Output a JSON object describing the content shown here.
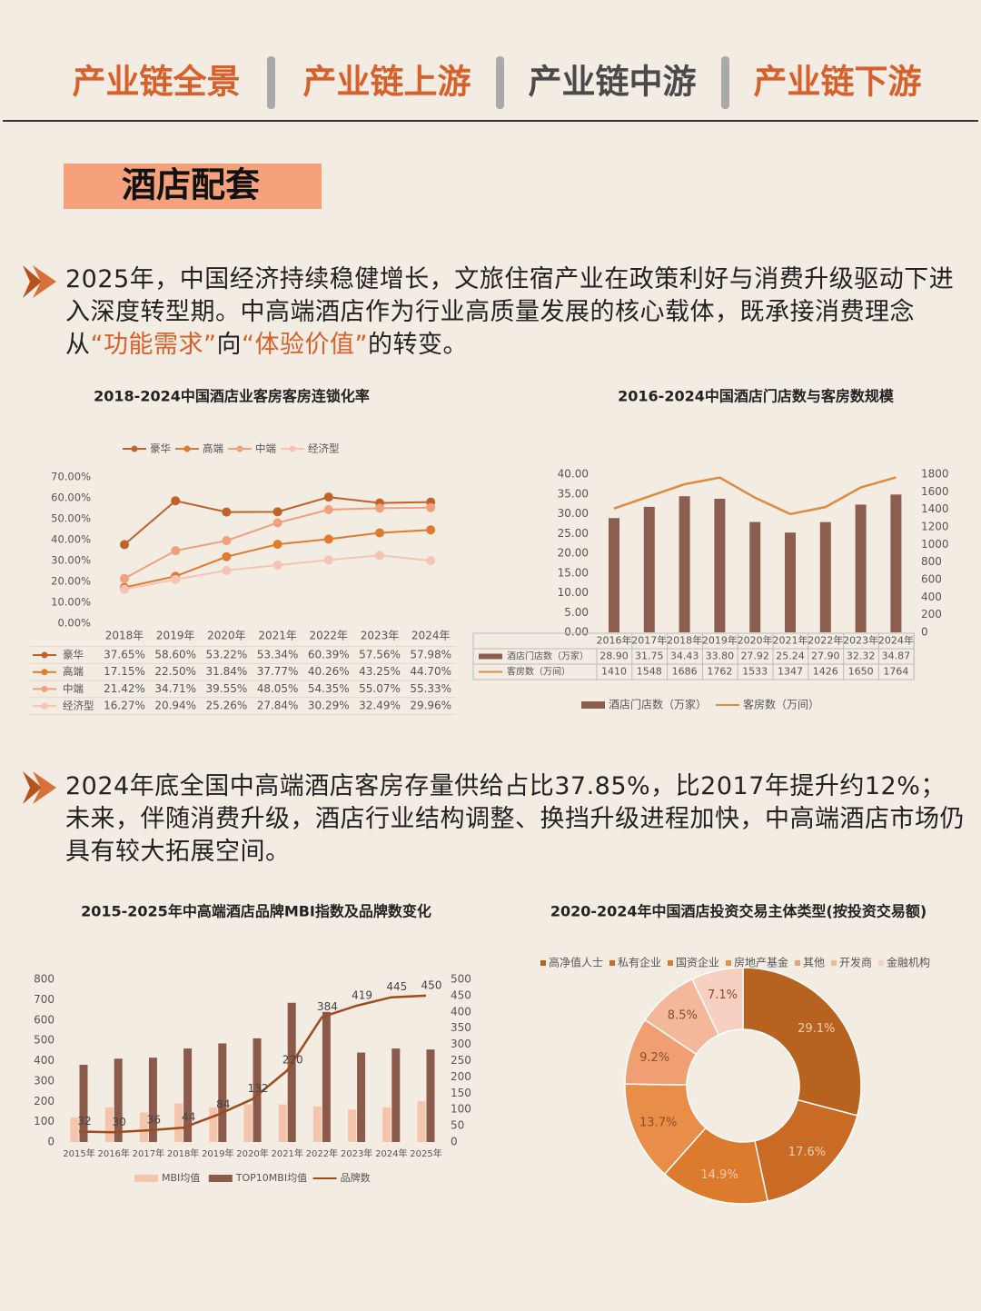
{
  "nav": [
    "产业链全景",
    "产业链上游",
    "产业链中游",
    "产业链下游"
  ],
  "section_title": "酒店配套",
  "paragraphs": [
    [
      "2025年，中国经济持续稳健增长，文旅住宿产业在政策利好与消费升级驱动下进入深度转型期。中高端酒店作为行业高质量发展的核心载体，既承接消费理念从",
      "“功能需求”",
      "向",
      "“体验价值”",
      "的转变。"
    ],
    [
      "2024年底全国中高端酒店客房存量供给占比37.85%，比2017年提升约12%；未来，伴随消费升级，酒店行业结构调整、换挡升级进程加快，中高端酒店市场仍具有较大拓展空间。"
    ]
  ],
  "chart_data": [
    {
      "type": "line",
      "title": "2018-2024中国酒店业客房客房连锁化率",
      "categories": [
        "2018年",
        "2019年",
        "2020年",
        "2021年",
        "2022年",
        "2023年",
        "2024年"
      ],
      "series": [
        {
          "name": "豪华",
          "color": "#c0622a",
          "values": [
            37.65,
            58.6,
            53.22,
            53.34,
            60.39,
            57.56,
            57.98
          ],
          "value_labels": [
            "37.65%",
            "58.60%",
            "53.22%",
            "53.34%",
            "60.39%",
            "57.56%",
            "57.98%"
          ]
        },
        {
          "name": "高端",
          "color": "#e07b2e",
          "values": [
            17.15,
            22.5,
            31.84,
            37.77,
            40.26,
            43.25,
            44.7
          ],
          "value_labels": [
            "17.15%",
            "22.50%",
            "31.84%",
            "37.77%",
            "40.26%",
            "43.25%",
            "44.70%"
          ]
        },
        {
          "name": "中端",
          "color": "#f0a07a",
          "values": [
            21.42,
            34.71,
            39.55,
            48.05,
            54.35,
            55.07,
            55.33
          ],
          "value_labels": [
            "21.42%",
            "34.71%",
            "39.55%",
            "48.05%",
            "54.35%",
            "55.07%",
            "55.33%"
          ]
        },
        {
          "name": "经济型",
          "color": "#f5c4b2",
          "values": [
            16.27,
            20.94,
            25.26,
            27.84,
            30.29,
            32.49,
            29.96
          ],
          "value_labels": [
            "16.27%",
            "20.94%",
            "25.26%",
            "27.84%",
            "30.29%",
            "32.49%",
            "29.96%"
          ]
        }
      ],
      "ylim": [
        0,
        70
      ],
      "yticks": [
        {
          "value": 0,
          "label": "0.00%"
        },
        {
          "value": 10,
          "label": "10.00%"
        },
        {
          "value": 20,
          "label": "20.00%"
        },
        {
          "value": 30,
          "label": "30.00%"
        },
        {
          "value": 40,
          "label": "40.00%"
        },
        {
          "value": 50,
          "label": "50.00%"
        },
        {
          "value": 60,
          "label": "60.00%"
        },
        {
          "value": 70,
          "label": "70.00%"
        }
      ],
      "legend": "top",
      "table": true,
      "grid": false
    },
    {
      "type": "bar",
      "title": "2016-2024中国酒店门店数与客房数规模",
      "categories": [
        "2016年",
        "2017年",
        "2018年",
        "2019年",
        "2020年",
        "2021年",
        "2022年",
        "2023年",
        "2024年"
      ],
      "series": [
        {
          "name": "酒店门店数（万家）",
          "color": "#8c5e50",
          "values": [
            28.9,
            31.75,
            34.43,
            33.8,
            27.92,
            25.24,
            27.9,
            32.32,
            34.87
          ],
          "value_labels": [
            "28.90",
            "31.75",
            "34.43",
            "33.80",
            "27.92",
            "25.24",
            "27.90",
            "32.32",
            "34.87"
          ]
        },
        {
          "name": "客房数（万间）",
          "type": "line",
          "axis": "y2",
          "color": "#e08a3c",
          "values": [
            1410,
            1548,
            1686,
            1762,
            1533,
            1347,
            1426,
            1650,
            1764
          ]
        }
      ],
      "ylim": [
        0,
        40
      ],
      "yticks": [
        {
          "value": 0,
          "label": "0.00"
        },
        {
          "value": 5,
          "label": "5.00"
        },
        {
          "value": 10,
          "label": "10.00"
        },
        {
          "value": 15,
          "label": "15.00"
        },
        {
          "value": 20,
          "label": "20.00"
        },
        {
          "value": 25,
          "label": "25.00"
        },
        {
          "value": 30,
          "label": "30.00"
        },
        {
          "value": 35,
          "label": "35.00"
        },
        {
          "value": 40,
          "label": "40.00"
        }
      ],
      "y2lim": [
        0,
        1800
      ],
      "y2ticks": [
        0,
        200,
        400,
        600,
        800,
        1000,
        1200,
        1400,
        1600,
        1800
      ],
      "legend": "bottom",
      "table": true,
      "grid": false
    },
    {
      "type": "bar",
      "title": "2015-2025年中高端酒店品牌MBI指数及品牌数变化",
      "categories": [
        "2015年",
        "2016年",
        "2017年",
        "2018年",
        "2019年",
        "2020年",
        "2021年",
        "2022年",
        "2023年",
        "2024年",
        "2025年"
      ],
      "series": [
        {
          "name": "MBI均值",
          "color": "#f6c4aa",
          "values": [
            120,
            170,
            145,
            190,
            170,
            185,
            185,
            175,
            160,
            170,
            200
          ]
        },
        {
          "name": "TOP10MBI均值",
          "color": "#8b5a4a",
          "values": [
            380,
            410,
            415,
            460,
            485,
            510,
            685,
            640,
            440,
            460,
            455
          ]
        },
        {
          "name": "品牌数",
          "type": "line",
          "axis": "y2",
          "color": "#a04b1e",
          "values": [
            32,
            30,
            36,
            44,
            84,
            132,
            220,
            384,
            419,
            445,
            450
          ]
        }
      ],
      "ylim": [
        0,
        800
      ],
      "yticks": [
        0,
        100,
        200,
        300,
        400,
        500,
        600,
        700,
        800
      ],
      "y2lim": [
        0,
        500
      ],
      "y2ticks": [
        0,
        50,
        100,
        150,
        200,
        250,
        300,
        350,
        400,
        450,
        500
      ],
      "legend": "bottom",
      "table": false,
      "grid": false
    },
    {
      "type": "pie",
      "donut": true,
      "title": "2020-2024年中国酒店投资交易主体类型(按投资交易额)",
      "categories": [
        "高净值人士",
        "私有企业",
        "国资企业",
        "房地产基金",
        "其他",
        "开发商",
        "金融机构"
      ],
      "values": [
        29.1,
        17.6,
        14.9,
        13.7,
        9.2,
        8.5,
        7.1
      ],
      "value_labels": [
        "29.1%",
        "17.6%",
        "14.9%",
        "13.7%",
        "9.2%",
        "8.5%",
        "7.1%"
      ],
      "colors": [
        "#b8621f",
        "#c96b24",
        "#dc7a2d",
        "#e98e48",
        "#ef9f72",
        "#f3b89a",
        "#f7d0c2"
      ],
      "legend": "top"
    }
  ]
}
